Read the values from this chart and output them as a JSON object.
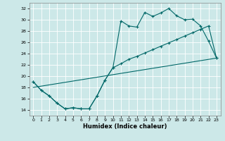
{
  "title": "",
  "xlabel": "Humidex (Indice chaleur)",
  "ylabel": "",
  "bg_color": "#cce8e8",
  "grid_color": "#b0d8d8",
  "line_color": "#006868",
  "xlim": [
    -0.5,
    23.5
  ],
  "ylim": [
    13,
    33
  ],
  "yticks": [
    14,
    16,
    18,
    20,
    22,
    24,
    26,
    28,
    30,
    32
  ],
  "xticks": [
    0,
    1,
    2,
    3,
    4,
    5,
    6,
    7,
    8,
    9,
    10,
    11,
    12,
    13,
    14,
    15,
    16,
    17,
    18,
    19,
    20,
    21,
    22,
    23
  ],
  "line1_x": [
    0,
    1,
    2,
    3,
    4,
    5,
    6,
    7,
    8,
    9,
    10,
    11,
    12,
    13,
    14,
    15,
    16,
    17,
    18,
    19,
    20,
    21,
    22,
    23
  ],
  "line1_y": [
    19.0,
    17.5,
    16.5,
    15.2,
    14.2,
    14.4,
    14.2,
    14.2,
    16.5,
    19.3,
    21.5,
    29.8,
    28.9,
    28.7,
    31.3,
    30.6,
    31.2,
    32.0,
    30.7,
    30.0,
    30.1,
    28.9,
    26.2,
    23.2
  ],
  "line2_x": [
    0,
    1,
    2,
    3,
    4,
    5,
    6,
    7,
    8,
    9,
    10,
    11,
    12,
    13,
    14,
    15,
    16,
    17,
    18,
    19,
    20,
    21,
    22,
    23
  ],
  "line2_y": [
    19.0,
    17.5,
    16.5,
    15.2,
    14.2,
    14.4,
    14.2,
    14.2,
    16.5,
    19.3,
    21.5,
    22.2,
    23.0,
    23.5,
    24.1,
    24.7,
    25.3,
    25.9,
    26.5,
    27.1,
    27.7,
    28.3,
    28.9,
    23.2
  ],
  "line3_x": [
    0,
    23
  ],
  "line3_y": [
    18.0,
    23.2
  ]
}
